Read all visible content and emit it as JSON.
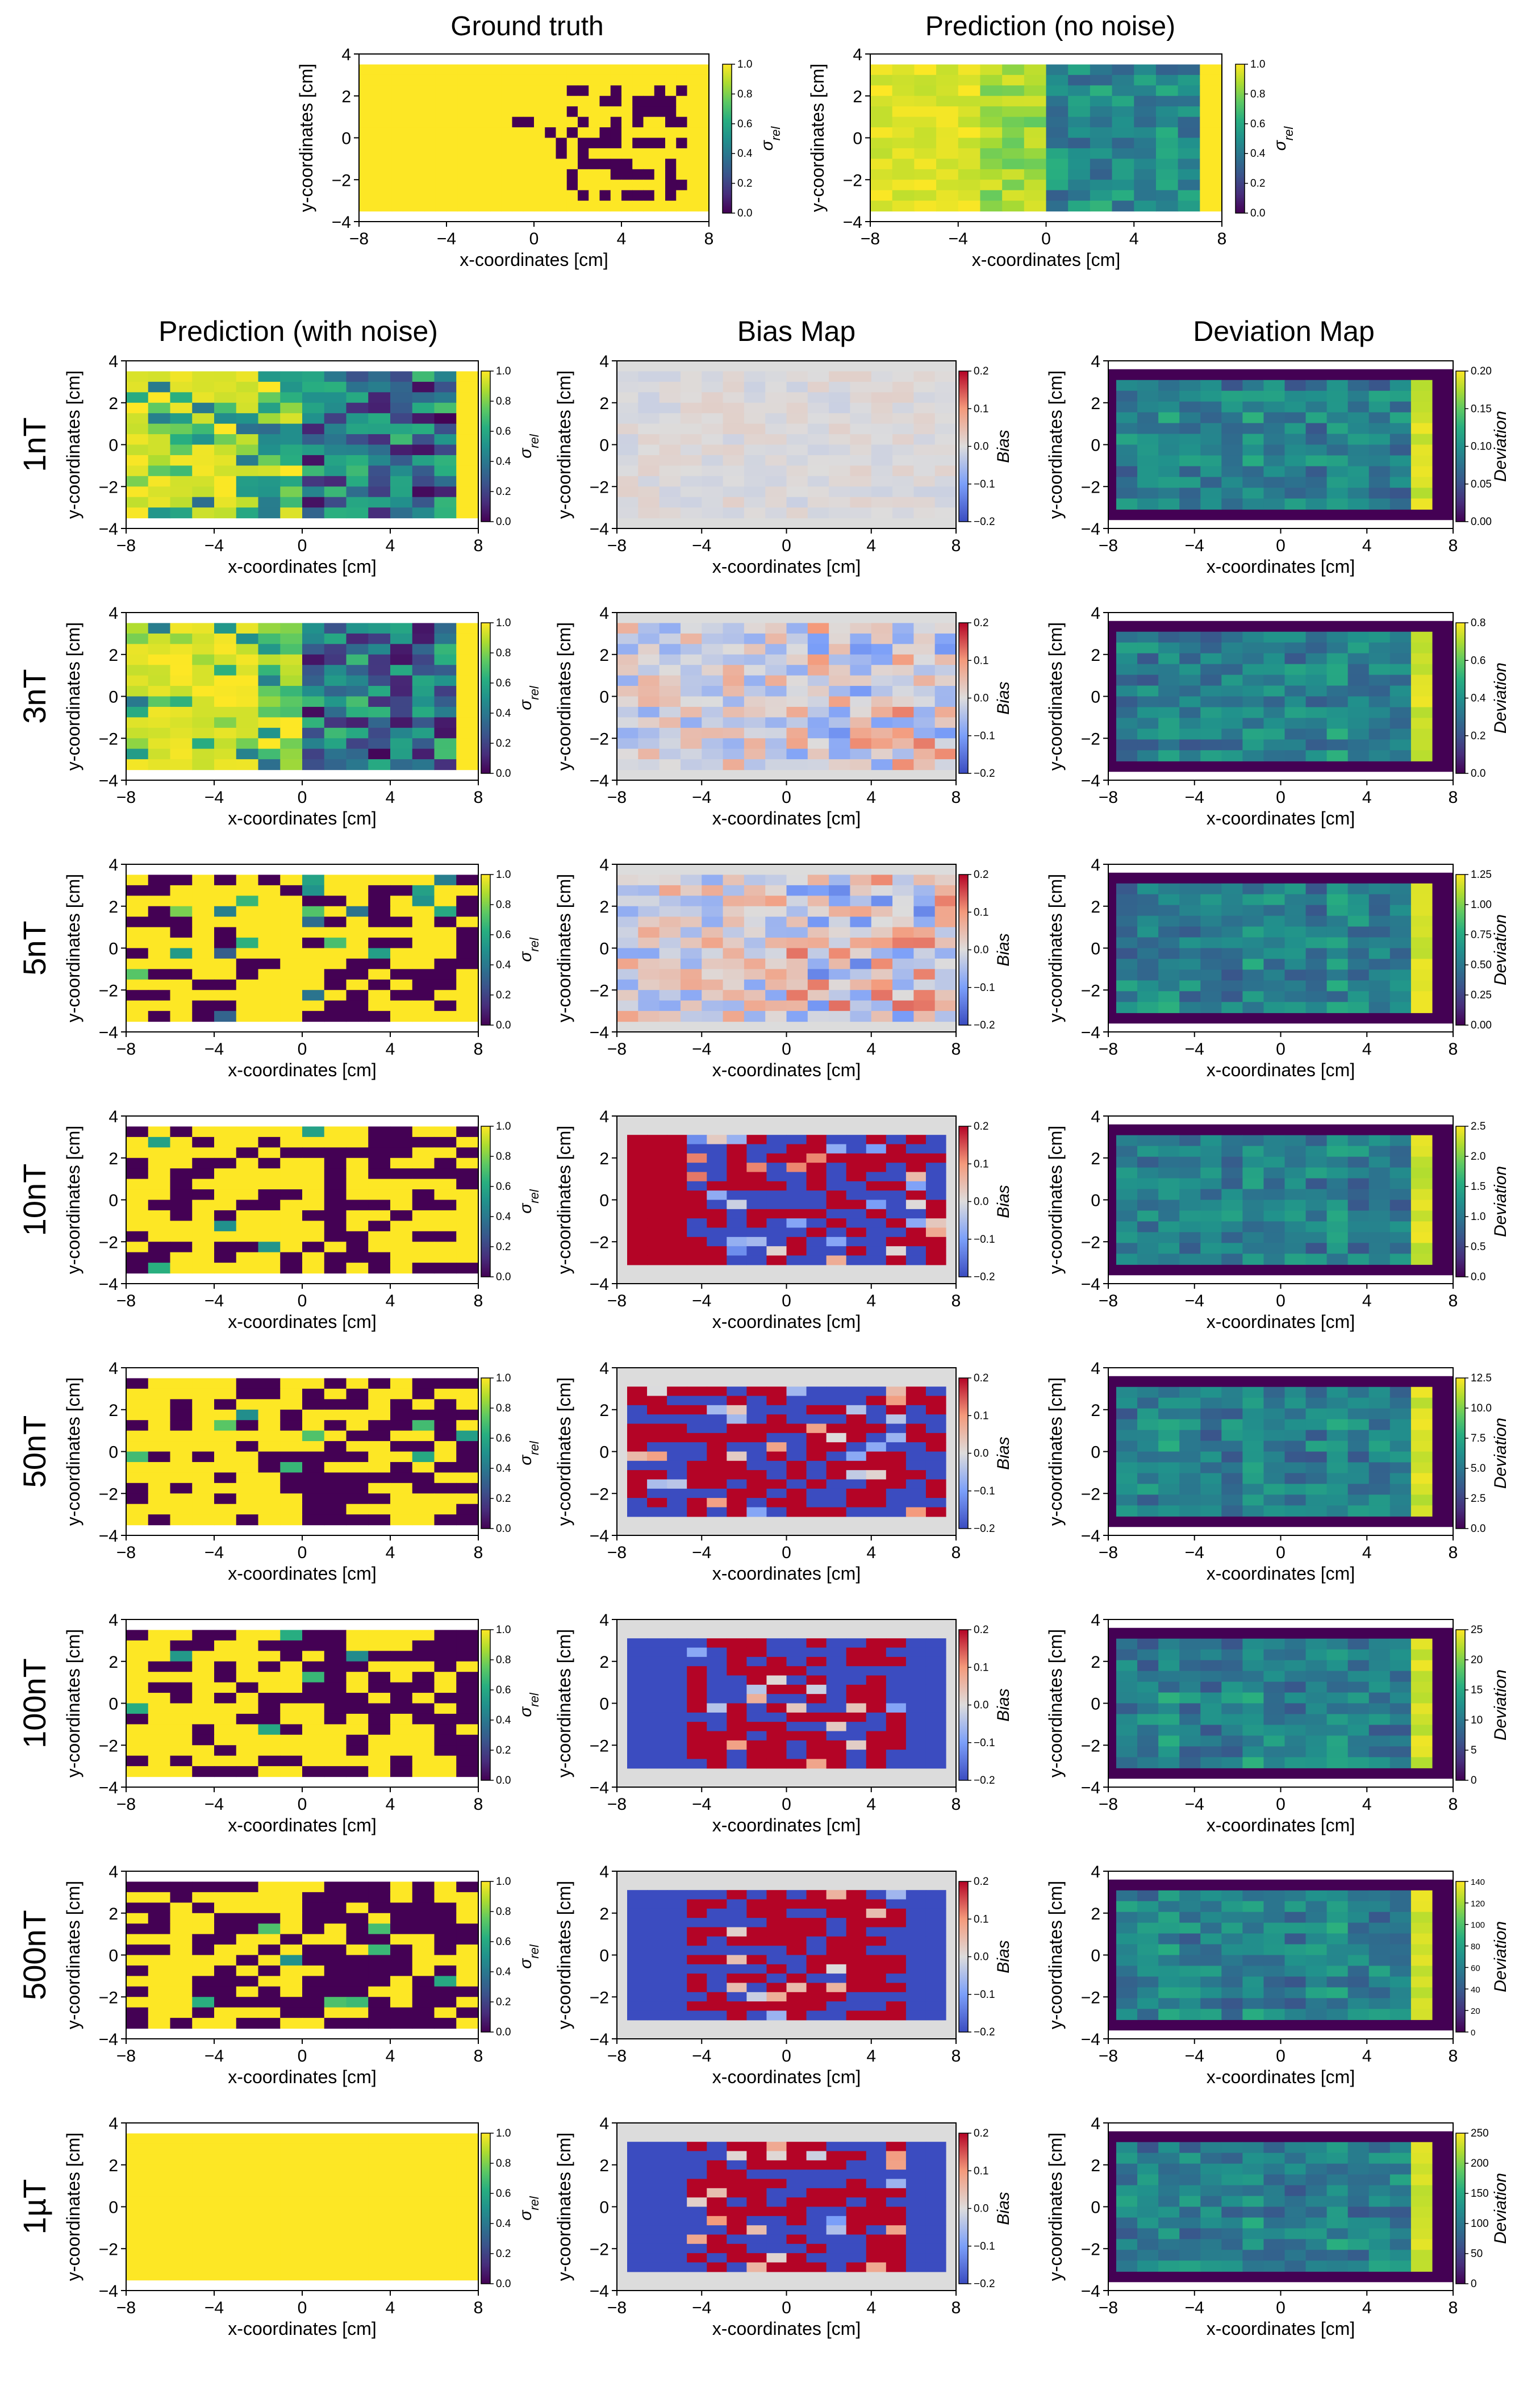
{
  "figure": {
    "top_titles": [
      "Ground truth",
      "Prediction (no noise)"
    ],
    "column_titles": [
      "Prediction (with noise)",
      "Bias Map",
      "Deviation Map"
    ],
    "row_labels": [
      "1nT",
      "3nT",
      "5nT",
      "10nT",
      "50nT",
      "100nT",
      "500nT",
      "1µT"
    ],
    "xlabel": "x-coordinates [cm]",
    "ylabel": "y-coordinates [cm]",
    "x_ticks": [
      "−8",
      "−4",
      "0",
      "4",
      "8"
    ],
    "y_ticks": [
      "4",
      "2",
      "0",
      "−2",
      "−4"
    ],
    "colorbar_sigma_label": "σ_rel",
    "colorbar_bias_label": "Bias",
    "colorbar_dev_label": "Deviation",
    "sigma_ticks": [
      "0.0",
      "0.2",
      "0.4",
      "0.6",
      "0.8",
      "1.0"
    ],
    "bias_ticks": [
      "−0.2",
      "−0.1",
      "0.0",
      "0.1",
      "0.2"
    ],
    "deviation_ticks": [
      [
        "0.00",
        "0.05",
        "0.10",
        "0.15",
        "0.20"
      ],
      [
        "0.0",
        "0.2",
        "0.4",
        "0.6",
        "0.8"
      ],
      [
        "0.00",
        "0.25",
        "0.50",
        "0.75",
        "1.00",
        "1.25"
      ],
      [
        "0.0",
        "0.5",
        "1.0",
        "1.5",
        "2.0",
        "2.5"
      ],
      [
        "0.0",
        "2.5",
        "5.0",
        "7.5",
        "10.0",
        "12.5"
      ],
      [
        "0",
        "5",
        "10",
        "15",
        "20",
        "25"
      ],
      [
        "0",
        "20",
        "40",
        "60",
        "80",
        "100",
        "120",
        "140"
      ],
      [
        "0",
        "50",
        "100",
        "150",
        "200",
        "250"
      ]
    ]
  },
  "colors": {
    "sigma_colormap": "viridis",
    "bias_colormap": "coolwarm",
    "deviation_colormap": "viridis",
    "bias_background": "#dcdcdc",
    "ground_truth_background": "#fde725",
    "ground_truth_inclusion": "#440154"
  },
  "chart_data": [
    {
      "type": "heatmap",
      "name": "ground-truth",
      "title": "Ground truth",
      "xlabel": "x-coordinates [cm]",
      "ylabel": "y-coordinates [cm]",
      "xlim": [
        -8,
        8
      ],
      "ylim": [
        -4,
        4
      ],
      "grid_cols": 32,
      "grid_rows": 14,
      "colorbar": "σ_rel",
      "vrange": [
        0,
        1
      ],
      "value_range": [
        0,
        1
      ]
    },
    {
      "type": "heatmap",
      "name": "prediction-no-noise",
      "title": "Prediction (no noise)",
      "xlabel": "x-coordinates [cm]",
      "ylabel": "y-coordinates [cm]",
      "xlim": [
        -8,
        8
      ],
      "ylim": [
        -4,
        4
      ],
      "grid_cols": 16,
      "grid_rows": 14,
      "colorbar": "σ_rel",
      "vrange": [
        0,
        1
      ],
      "value_range": [
        0.3,
        1
      ]
    },
    {
      "type": "heatmap",
      "name": "prediction-1nT",
      "row": "1nT",
      "kind": "sigma",
      "xlim": [
        -8,
        8
      ],
      "ylim": [
        -4,
        4
      ],
      "grid_cols": 16,
      "grid_rows": 14,
      "vrange": [
        0,
        1
      ],
      "value_range": [
        0.2,
        1
      ]
    },
    {
      "type": "heatmap",
      "name": "bias-1nT",
      "row": "1nT",
      "kind": "bias",
      "xlim": [
        -8,
        8
      ],
      "ylim": [
        -4,
        4
      ],
      "grid_cols": 16,
      "grid_rows": 14,
      "vrange": [
        -0.2,
        0.2
      ],
      "value_range": [
        -0.02,
        0.02
      ]
    },
    {
      "type": "heatmap",
      "name": "deviation-1nT",
      "row": "1nT",
      "kind": "deviation",
      "xlim": [
        -8,
        8
      ],
      "ylim": [
        -4,
        4
      ],
      "grid_cols": 16,
      "grid_rows": 14,
      "vrange": [
        0,
        0.2
      ],
      "value_range": [
        0,
        0.2
      ]
    },
    {
      "type": "heatmap",
      "name": "prediction-3nT",
      "row": "3nT",
      "kind": "sigma",
      "xlim": [
        -8,
        8
      ],
      "ylim": [
        -4,
        4
      ],
      "grid_cols": 16,
      "grid_rows": 14,
      "vrange": [
        0,
        1
      ],
      "value_range": [
        0,
        1
      ]
    },
    {
      "type": "heatmap",
      "name": "bias-3nT",
      "row": "3nT",
      "kind": "bias",
      "xlim": [
        -8,
        8
      ],
      "ylim": [
        -4,
        4
      ],
      "grid_cols": 16,
      "grid_rows": 14,
      "vrange": [
        -0.2,
        0.2
      ],
      "value_range": [
        -0.08,
        0.1
      ]
    },
    {
      "type": "heatmap",
      "name": "deviation-3nT",
      "row": "3nT",
      "kind": "deviation",
      "xlim": [
        -8,
        8
      ],
      "ylim": [
        -4,
        4
      ],
      "grid_cols": 16,
      "grid_rows": 14,
      "vrange": [
        0,
        0.85
      ],
      "value_range": [
        0,
        0.85
      ]
    },
    {
      "type": "heatmap",
      "name": "prediction-5nT",
      "row": "5nT",
      "kind": "sigma",
      "xlim": [
        -8,
        8
      ],
      "ylim": [
        -4,
        4
      ],
      "grid_cols": 16,
      "grid_rows": 14,
      "vrange": [
        0,
        1
      ],
      "value_range": [
        0,
        1
      ]
    },
    {
      "type": "heatmap",
      "name": "bias-5nT",
      "row": "5nT",
      "kind": "bias",
      "xlim": [
        -8,
        8
      ],
      "ylim": [
        -4,
        4
      ],
      "grid_cols": 16,
      "grid_rows": 14,
      "vrange": [
        -0.2,
        0.2
      ],
      "value_range": [
        -0.1,
        0.12
      ]
    },
    {
      "type": "heatmap",
      "name": "deviation-5nT",
      "row": "5nT",
      "kind": "deviation",
      "xlim": [
        -8,
        8
      ],
      "ylim": [
        -4,
        4
      ],
      "grid_cols": 16,
      "grid_rows": 14,
      "vrange": [
        0,
        1.35
      ],
      "value_range": [
        0,
        1.35
      ]
    },
    {
      "type": "heatmap",
      "name": "prediction-10nT",
      "row": "10nT",
      "kind": "sigma",
      "xlim": [
        -8,
        8
      ],
      "ylim": [
        -4,
        4
      ],
      "grid_cols": 16,
      "grid_rows": 14,
      "vrange": [
        0,
        1
      ],
      "value_range": [
        0,
        1
      ]
    },
    {
      "type": "heatmap",
      "name": "bias-10nT",
      "row": "10nT",
      "kind": "bias",
      "xlim": [
        -8,
        8
      ],
      "ylim": [
        -4,
        4
      ],
      "grid_cols": 16,
      "grid_rows": 14,
      "vrange": [
        -0.2,
        0.2
      ],
      "value_range": [
        -0.2,
        0.2
      ]
    },
    {
      "type": "heatmap",
      "name": "deviation-10nT",
      "row": "10nT",
      "kind": "deviation",
      "xlim": [
        -8,
        8
      ],
      "ylim": [
        -4,
        4
      ],
      "grid_cols": 16,
      "grid_rows": 14,
      "vrange": [
        0,
        2.7
      ],
      "value_range": [
        0,
        2.7
      ]
    },
    {
      "type": "heatmap",
      "name": "prediction-50nT",
      "row": "50nT",
      "kind": "sigma",
      "xlim": [
        -8,
        8
      ],
      "ylim": [
        -4,
        4
      ],
      "grid_cols": 16,
      "grid_rows": 14,
      "vrange": [
        0,
        1
      ],
      "value_range": [
        0,
        1
      ]
    },
    {
      "type": "heatmap",
      "name": "bias-50nT",
      "row": "50nT",
      "kind": "bias",
      "xlim": [
        -8,
        8
      ],
      "ylim": [
        -4,
        4
      ],
      "grid_cols": 16,
      "grid_rows": 14,
      "vrange": [
        -0.2,
        0.2
      ],
      "value_range": [
        -0.2,
        0.2
      ]
    },
    {
      "type": "heatmap",
      "name": "deviation-50nT",
      "row": "50nT",
      "kind": "deviation",
      "xlim": [
        -8,
        8
      ],
      "ylim": [
        -4,
        4
      ],
      "grid_cols": 16,
      "grid_rows": 14,
      "vrange": [
        0,
        13
      ],
      "value_range": [
        0,
        13
      ]
    },
    {
      "type": "heatmap",
      "name": "prediction-100nT",
      "row": "100nT",
      "kind": "sigma",
      "xlim": [
        -8,
        8
      ],
      "ylim": [
        -4,
        4
      ],
      "grid_cols": 16,
      "grid_rows": 14,
      "vrange": [
        0,
        1
      ],
      "value_range": [
        0,
        1
      ]
    },
    {
      "type": "heatmap",
      "name": "bias-100nT",
      "row": "100nT",
      "kind": "bias",
      "xlim": [
        -8,
        8
      ],
      "ylim": [
        -4,
        4
      ],
      "grid_cols": 16,
      "grid_rows": 14,
      "vrange": [
        -0.2,
        0.2
      ],
      "value_range": [
        -0.2,
        0.2
      ]
    },
    {
      "type": "heatmap",
      "name": "deviation-100nT",
      "row": "100nT",
      "kind": "deviation",
      "xlim": [
        -8,
        8
      ],
      "ylim": [
        -4,
        4
      ],
      "grid_cols": 16,
      "grid_rows": 14,
      "vrange": [
        0,
        27
      ],
      "value_range": [
        0,
        27
      ]
    },
    {
      "type": "heatmap",
      "name": "prediction-500nT",
      "row": "500nT",
      "kind": "sigma",
      "xlim": [
        -8,
        8
      ],
      "ylim": [
        -4,
        4
      ],
      "grid_cols": 16,
      "grid_rows": 14,
      "vrange": [
        0,
        1
      ],
      "value_range": [
        0,
        1
      ]
    },
    {
      "type": "heatmap",
      "name": "bias-500nT",
      "row": "500nT",
      "kind": "bias",
      "xlim": [
        -8,
        8
      ],
      "ylim": [
        -4,
        4
      ],
      "grid_cols": 16,
      "grid_rows": 14,
      "vrange": [
        -0.2,
        0.2
      ],
      "value_range": [
        -0.2,
        0.2
      ]
    },
    {
      "type": "heatmap",
      "name": "deviation-500nT",
      "row": "500nT",
      "kind": "deviation",
      "xlim": [
        -8,
        8
      ],
      "ylim": [
        -4,
        4
      ],
      "grid_cols": 16,
      "grid_rows": 14,
      "vrange": [
        0,
        150
      ],
      "value_range": [
        0,
        150
      ]
    },
    {
      "type": "heatmap",
      "name": "prediction-1µT",
      "row": "1µT",
      "kind": "sigma",
      "xlim": [
        -8,
        8
      ],
      "ylim": [
        -4,
        4
      ],
      "grid_cols": 16,
      "grid_rows": 14,
      "vrange": [
        0,
        1
      ],
      "value_range": [
        0,
        1
      ]
    },
    {
      "type": "heatmap",
      "name": "bias-1µT",
      "row": "1µT",
      "kind": "bias",
      "xlim": [
        -8,
        8
      ],
      "ylim": [
        -4,
        4
      ],
      "grid_cols": 16,
      "grid_rows": 14,
      "vrange": [
        -0.2,
        0.2
      ],
      "value_range": [
        -0.2,
        0.2
      ]
    },
    {
      "type": "heatmap",
      "name": "deviation-1µT",
      "row": "1µT",
      "kind": "deviation",
      "xlim": [
        -8,
        8
      ],
      "ylim": [
        -4,
        4
      ],
      "grid_cols": 16,
      "grid_rows": 14,
      "vrange": [
        0,
        270
      ],
      "value_range": [
        0,
        270
      ]
    }
  ]
}
